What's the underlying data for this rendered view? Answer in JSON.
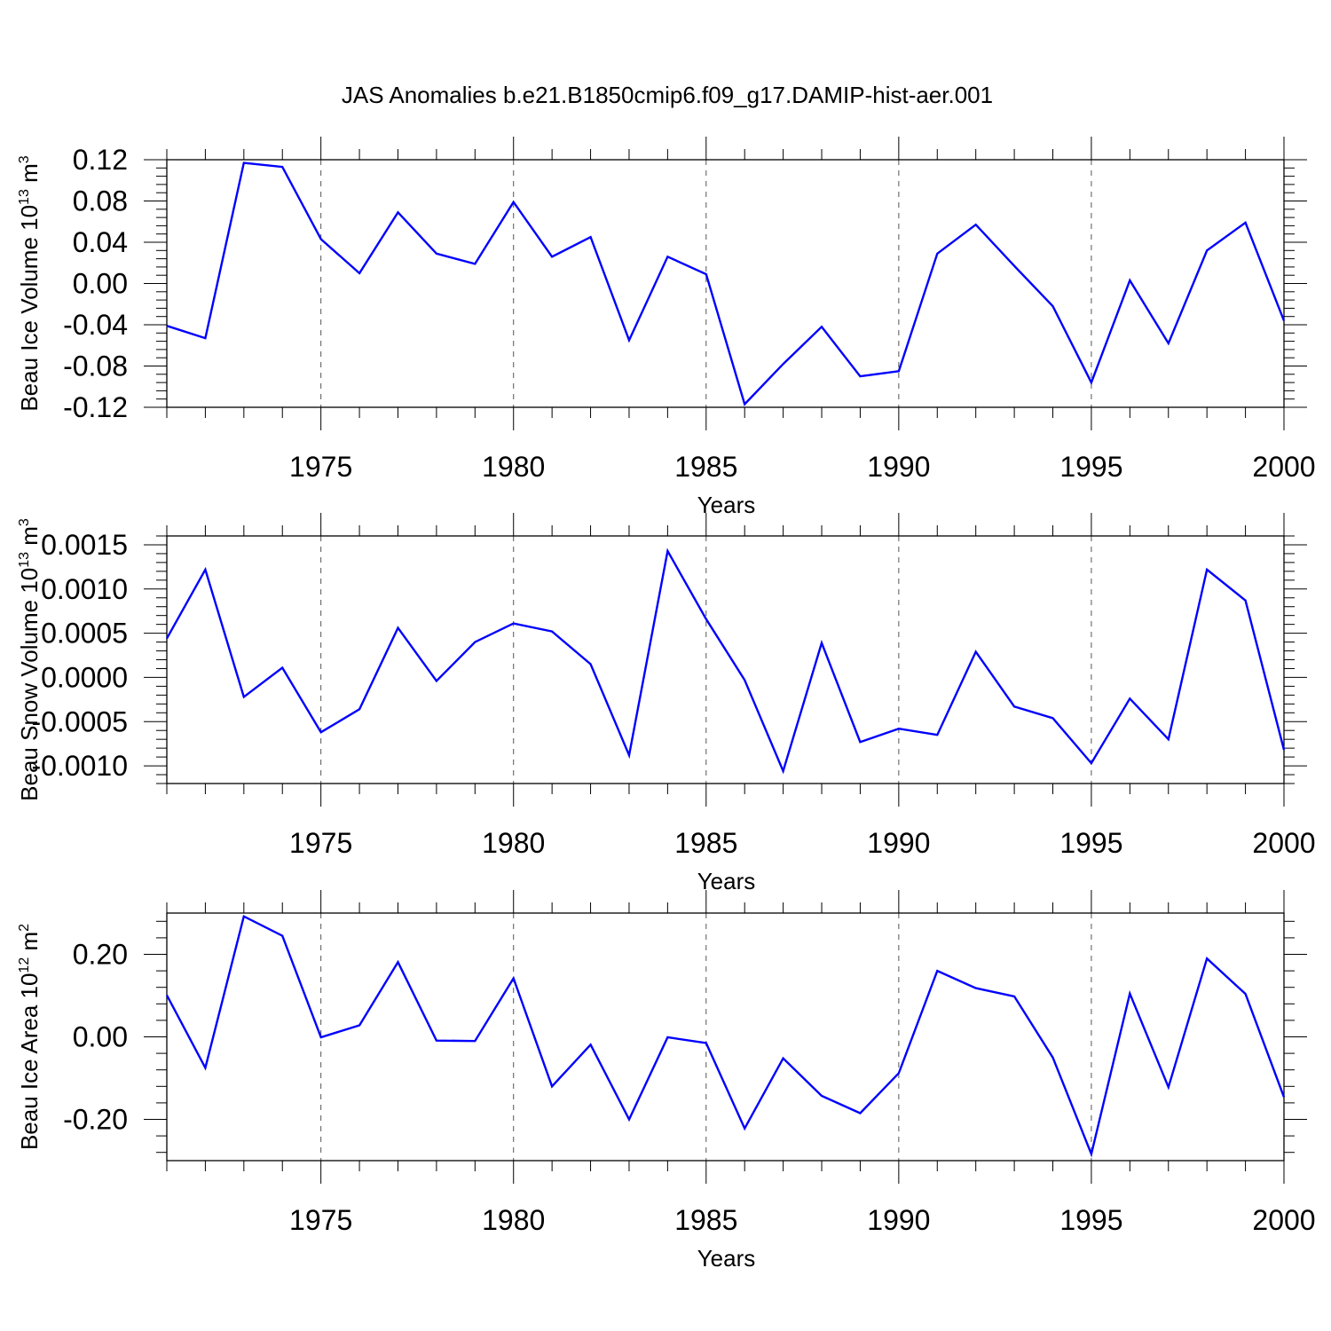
{
  "title": "JAS Anomalies b.e21.B1850cmip6.f09_g17.DAMIP-hist-aer.001",
  "colors": {
    "line": "#0000ff",
    "axis": "#000000",
    "grid": "#555555"
  },
  "chart_data": [
    {
      "type": "line",
      "ylabel": {
        "main": "Beau Ice Volume 10",
        "sup": "13",
        "unit": " m",
        "unit_sup": "3"
      },
      "xlabel": "Years",
      "xlim": [
        1971,
        2000
      ],
      "ylim": [
        -0.12,
        0.12
      ],
      "xticks": [
        1975,
        1980,
        1985,
        1990,
        1995,
        2000
      ],
      "yticks": [
        -0.12,
        -0.08,
        -0.04,
        0.0,
        0.04,
        0.08,
        0.12
      ],
      "ytick_labels": [
        "-0.12",
        "-0.08",
        "-0.04",
        "0.00",
        "0.04",
        "0.08",
        "0.12"
      ],
      "grid": "vertical dashed at major x ticks",
      "x": [
        1971,
        1972,
        1973,
        1974,
        1975,
        1976,
        1977,
        1978,
        1979,
        1980,
        1981,
        1982,
        1983,
        1984,
        1985,
        1986,
        1987,
        1988,
        1989,
        1990,
        1991,
        1992,
        1993,
        1994,
        1995,
        1996,
        1997,
        1998,
        1999,
        2000
      ],
      "series": [
        {
          "values": [
            -0.041,
            -0.053,
            0.117,
            0.113,
            0.043,
            0.01,
            0.069,
            0.029,
            0.019,
            0.079,
            0.026,
            0.045,
            -0.055,
            0.026,
            0.009,
            -0.117,
            -0.078,
            -0.042,
            -0.09,
            -0.085,
            0.029,
            0.057,
            0.017,
            -0.022,
            -0.096,
            0.003,
            -0.058,
            0.032,
            0.059,
            -0.036
          ]
        }
      ]
    },
    {
      "type": "line",
      "ylabel": {
        "main": "Beau Snow Volume 10",
        "sup": "13",
        "unit": " m",
        "unit_sup": "3"
      },
      "xlabel": "Years",
      "xlim": [
        1971,
        2000
      ],
      "ylim": [
        -0.0012,
        0.0016
      ],
      "xticks": [
        1975,
        1980,
        1985,
        1990,
        1995,
        2000
      ],
      "yticks": [
        -0.001,
        -0.0005,
        0.0,
        0.0005,
        0.001,
        0.0015
      ],
      "ytick_labels": [
        "-0.0010",
        "-0.0005",
        "0.0000",
        "0.0005",
        "0.0010",
        "0.0015"
      ],
      "grid": "vertical dashed at major x ticks",
      "x": [
        1971,
        1972,
        1973,
        1974,
        1975,
        1976,
        1977,
        1978,
        1979,
        1980,
        1981,
        1982,
        1983,
        1984,
        1985,
        1986,
        1987,
        1988,
        1989,
        1990,
        1991,
        1992,
        1993,
        1994,
        1995,
        1996,
        1997,
        1998,
        1999,
        2000
      ],
      "series": [
        {
          "values": [
            0.00044,
            0.00122,
            -0.00022,
            0.00011,
            -0.00062,
            -0.00036,
            0.00056,
            -4e-05,
            0.0004,
            0.00061,
            0.00052,
            0.00015,
            -0.00088,
            0.00143,
            0.00066,
            -3e-05,
            -0.00106,
            0.00039,
            -0.00073,
            -0.00058,
            -0.00065,
            0.00029,
            -0.00033,
            -0.00046,
            -0.00097,
            -0.00024,
            -0.0007,
            0.00122,
            0.00087,
            -0.00082
          ]
        }
      ]
    },
    {
      "type": "line",
      "ylabel": {
        "main": "Beau Ice Area 10",
        "sup": "12",
        "unit": " m",
        "unit_sup": "2"
      },
      "xlabel": "Years",
      "xlim": [
        1971,
        2000
      ],
      "ylim": [
        -0.3,
        0.3
      ],
      "xticks": [
        1975,
        1980,
        1985,
        1990,
        1995,
        2000
      ],
      "yticks": [
        -0.2,
        0.0,
        0.2
      ],
      "ytick_labels": [
        "-0.20",
        "0.00",
        "0.20"
      ],
      "grid": "vertical dashed at major x ticks",
      "x": [
        1971,
        1972,
        1973,
        1974,
        1975,
        1976,
        1977,
        1978,
        1979,
        1980,
        1981,
        1982,
        1983,
        1984,
        1985,
        1986,
        1987,
        1988,
        1989,
        1990,
        1991,
        1992,
        1993,
        1994,
        1995,
        1996,
        1997,
        1998,
        1999,
        2000
      ],
      "series": [
        {
          "values": [
            0.101,
            -0.075,
            0.292,
            0.245,
            -0.001,
            0.028,
            0.181,
            -0.009,
            -0.01,
            0.142,
            -0.12,
            -0.019,
            -0.2,
            -0.001,
            -0.015,
            -0.222,
            -0.052,
            -0.143,
            -0.185,
            -0.088,
            0.16,
            0.118,
            0.098,
            -0.05,
            -0.284,
            0.105,
            -0.122,
            0.19,
            0.104,
            -0.146
          ]
        }
      ]
    }
  ]
}
